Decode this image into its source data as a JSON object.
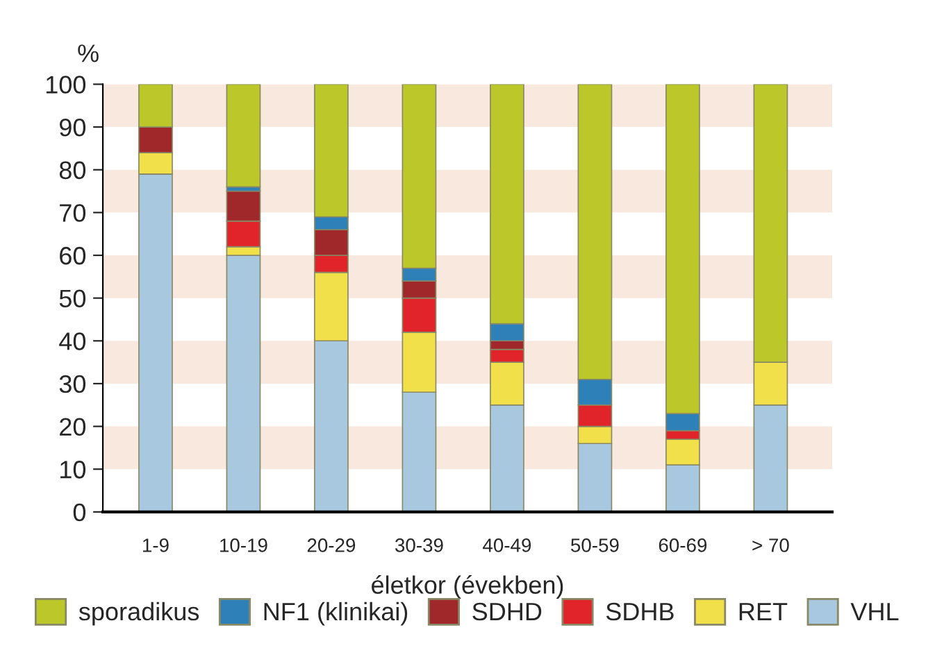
{
  "chart_data": {
    "type": "bar",
    "stacked": true,
    "ylabel": "%",
    "xlabel": "életkor (években)",
    "categories": [
      "1-9",
      "10-19",
      "20-29",
      "30-39",
      "40-49",
      "50-59",
      "60-69",
      "> 70"
    ],
    "series": [
      {
        "name": "VHL",
        "color": "#a8c8e0",
        "values": [
          79,
          60,
          40,
          28,
          25,
          16,
          11,
          25
        ]
      },
      {
        "name": "RET",
        "color": "#f2e04a",
        "values": [
          5,
          2,
          16,
          14,
          10,
          4,
          6,
          10
        ]
      },
      {
        "name": "SDHB",
        "color": "#e0242a",
        "values": [
          0,
          6,
          4,
          8,
          3,
          5,
          2,
          0
        ]
      },
      {
        "name": "SDHD",
        "color": "#a0282a",
        "values": [
          6,
          7,
          6,
          4,
          2,
          0,
          0,
          0
        ]
      },
      {
        "name": "NF1 (klinikai)",
        "color": "#2e80b8",
        "values": [
          0,
          1,
          3,
          3,
          4,
          6,
          4,
          0
        ]
      },
      {
        "name": "sporadikus",
        "color": "#bcc82a",
        "values": [
          10,
          24,
          31,
          43,
          56,
          69,
          77,
          65
        ]
      }
    ],
    "ylim": [
      0,
      100
    ],
    "yticks": [
      0,
      10,
      20,
      30,
      40,
      50,
      60,
      70,
      80,
      90,
      100
    ],
    "bands": [
      {
        "axis": "y",
        "from": 10,
        "to": 20,
        "color": "#f8e8de"
      },
      {
        "axis": "y",
        "from": 30,
        "to": 40,
        "color": "#f8e8de"
      },
      {
        "axis": "y",
        "from": 50,
        "to": 60,
        "color": "#f8e8de"
      },
      {
        "axis": "y",
        "from": 70,
        "to": 80,
        "color": "#f8e8de"
      },
      {
        "axis": "y",
        "from": 90,
        "to": 100,
        "color": "#f8e8de"
      }
    ],
    "grid": false,
    "legend": "bottom"
  }
}
